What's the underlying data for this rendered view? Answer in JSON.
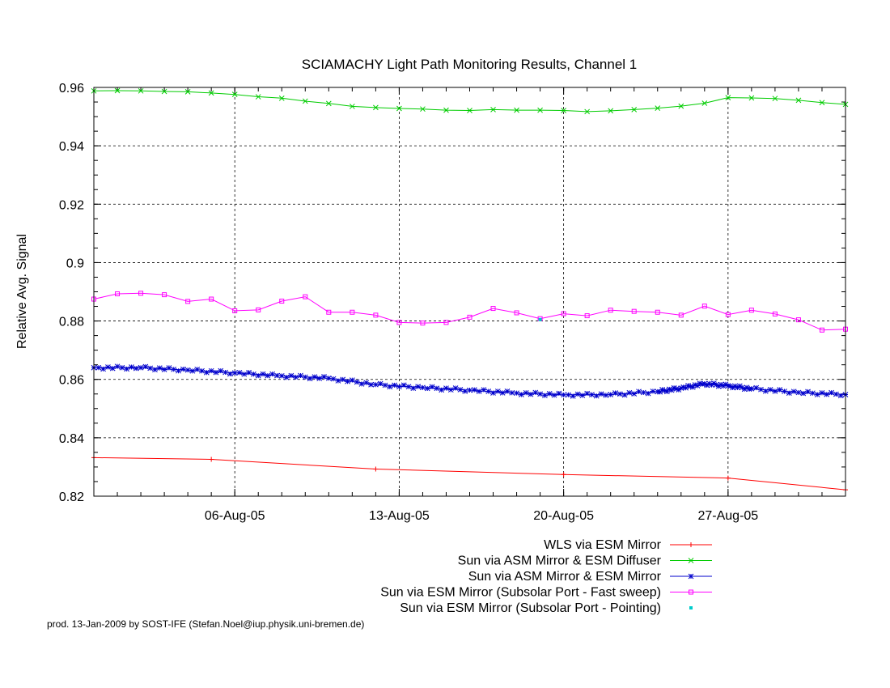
{
  "chart_data": {
    "type": "line",
    "title": "SCIAMACHY Light Path Monitoring Results, Channel 1",
    "xlabel": "",
    "ylabel": "Relative Avg. Signal",
    "xlim": [
      "2005-07-31",
      "2005-09-01"
    ],
    "ylim": [
      0.82,
      0.96
    ],
    "x_ticks": [
      {
        "date": "2005-08-06",
        "label": "06-Aug-05"
      },
      {
        "date": "2005-08-13",
        "label": "13-Aug-05"
      },
      {
        "date": "2005-08-20",
        "label": "20-Aug-05"
      },
      {
        "date": "2005-08-27",
        "label": "27-Aug-05"
      }
    ],
    "y_ticks": [
      {
        "value": 0.82,
        "label": "0.82"
      },
      {
        "value": 0.84,
        "label": "0.84"
      },
      {
        "value": 0.86,
        "label": "0.86"
      },
      {
        "value": 0.88,
        "label": "0.88"
      },
      {
        "value": 0.9,
        "label": "0.9"
      },
      {
        "value": 0.92,
        "label": "0.92"
      },
      {
        "value": 0.94,
        "label": "0.94"
      },
      {
        "value": 0.96,
        "label": "0.96"
      }
    ],
    "grid": true,
    "legend_position": "bottom-right",
    "series": [
      {
        "name": "WLS via ESM Mirror",
        "color": "#ff0000",
        "marker": "plus",
        "x": [
          "2005-07-31",
          "2005-08-05",
          "2005-08-12",
          "2005-08-20",
          "2005-08-27",
          "2005-09-01"
        ],
        "y": [
          0.8332,
          0.8326,
          0.8293,
          0.8274,
          0.8262,
          0.8222
        ]
      },
      {
        "name": "Sun via ASM Mirror & ESM Diffuser",
        "color": "#00cc00",
        "marker": "cross",
        "x": [
          "2005-07-31",
          "2005-08-01",
          "2005-08-02",
          "2005-08-03",
          "2005-08-04",
          "2005-08-05",
          "2005-08-06",
          "2005-08-07",
          "2005-08-08",
          "2005-08-09",
          "2005-08-10",
          "2005-08-11",
          "2005-08-12",
          "2005-08-13",
          "2005-08-14",
          "2005-08-15",
          "2005-08-16",
          "2005-08-17",
          "2005-08-18",
          "2005-08-19",
          "2005-08-20",
          "2005-08-21",
          "2005-08-22",
          "2005-08-23",
          "2005-08-24",
          "2005-08-25",
          "2005-08-26",
          "2005-08-27",
          "2005-08-28",
          "2005-08-29",
          "2005-08-30",
          "2005-08-31",
          "2005-09-01"
        ],
        "y": [
          0.9588,
          0.9589,
          0.9588,
          0.9586,
          0.9585,
          0.9581,
          0.9576,
          0.9568,
          0.9563,
          0.9553,
          0.9545,
          0.9535,
          0.9531,
          0.9528,
          0.9526,
          0.9522,
          0.9521,
          0.9524,
          0.9522,
          0.9522,
          0.9521,
          0.9517,
          0.952,
          0.9524,
          0.9529,
          0.9536,
          0.9546,
          0.9565,
          0.9564,
          0.9562,
          0.9556,
          0.9548,
          0.9542
        ]
      },
      {
        "name": "Sun via ASM Mirror & ESM Mirror",
        "color": "#0000cc",
        "marker": "star",
        "x": [
          "2005-07-31",
          "2005-08-02",
          "2005-08-04",
          "2005-08-06",
          "2005-08-08",
          "2005-08-10",
          "2005-08-12",
          "2005-08-14",
          "2005-08-16",
          "2005-08-18",
          "2005-08-20",
          "2005-08-22",
          "2005-08-24",
          "2005-08-25",
          "2005-08-26",
          "2005-08-27",
          "2005-08-28",
          "2005-08-30",
          "2005-09-01"
        ],
        "y": [
          0.864,
          0.864,
          0.8632,
          0.8622,
          0.8612,
          0.8604,
          0.8582,
          0.8572,
          0.8563,
          0.8553,
          0.8547,
          0.8548,
          0.8558,
          0.857,
          0.8585,
          0.8578,
          0.8568,
          0.8555,
          0.8548
        ]
      },
      {
        "name": "Sun via ESM Mirror (Subsolar Port - Fast sweep)",
        "color": "#ff00ff",
        "marker": "square",
        "x": [
          "2005-07-31",
          "2005-08-01",
          "2005-08-02",
          "2005-08-03",
          "2005-08-04",
          "2005-08-05",
          "2005-08-06",
          "2005-08-07",
          "2005-08-08",
          "2005-08-09",
          "2005-08-10",
          "2005-08-11",
          "2005-08-12",
          "2005-08-13",
          "2005-08-14",
          "2005-08-15",
          "2005-08-16",
          "2005-08-17",
          "2005-08-18",
          "2005-08-19",
          "2005-08-20",
          "2005-08-21",
          "2005-08-22",
          "2005-08-23",
          "2005-08-24",
          "2005-08-25",
          "2005-08-26",
          "2005-08-27",
          "2005-08-28",
          "2005-08-29",
          "2005-08-30",
          "2005-08-31",
          "2005-09-01"
        ],
        "y": [
          0.8875,
          0.8893,
          0.8895,
          0.889,
          0.8867,
          0.8875,
          0.8835,
          0.8838,
          0.8868,
          0.8883,
          0.883,
          0.883,
          0.882,
          0.8795,
          0.8793,
          0.8795,
          0.8813,
          0.8843,
          0.8828,
          0.8808,
          0.8825,
          0.8818,
          0.8837,
          0.8833,
          0.883,
          0.882,
          0.8851,
          0.8822,
          0.8837,
          0.8824,
          0.8804,
          0.8769,
          0.8772
        ]
      },
      {
        "name": "Sun via ESM Mirror (Subsolar Port - Pointing)",
        "color": "#00cccc",
        "marker": "dot",
        "x": [
          "2005-08-19"
        ],
        "y": [
          0.8805
        ]
      }
    ]
  },
  "footer": "prod. 13-Jan-2009 by SOST-IFE (Stefan.Noel@iup.physik.uni-bremen.de)"
}
